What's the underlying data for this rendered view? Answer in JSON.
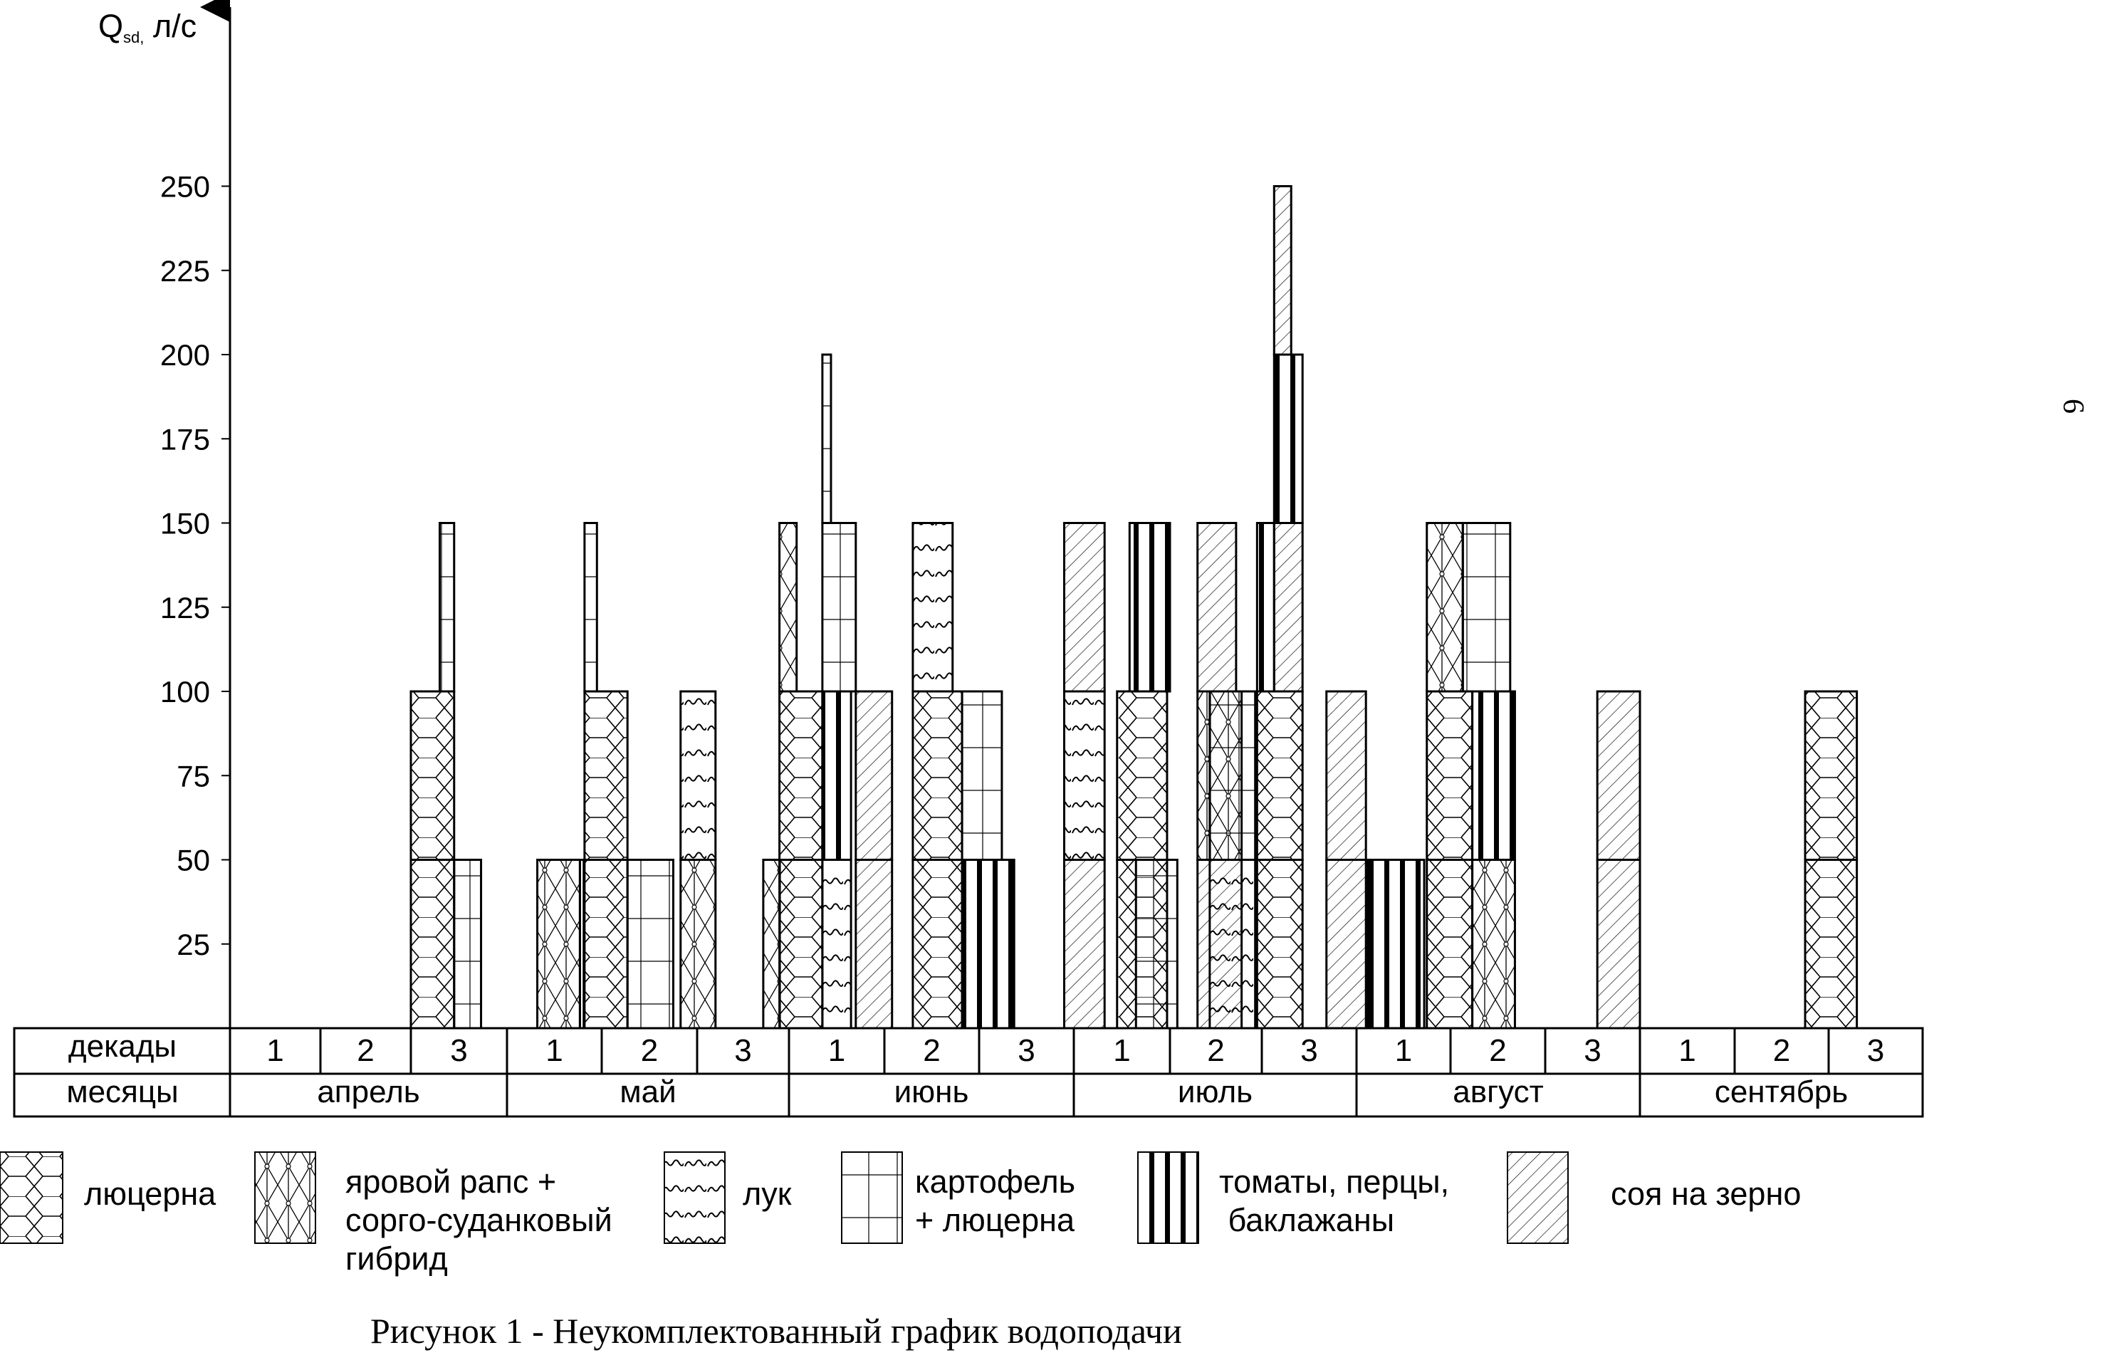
{
  "chart_data": {
    "type": "bar",
    "title": "",
    "ylabel": "Qsd, л/с",
    "ylabel_main": "Q",
    "ylabel_sub": "sd,",
    "ylabel_unit": " л/с",
    "ylim": [
      0,
      300
    ],
    "yticks": [
      25,
      50,
      75,
      100,
      125,
      150,
      175,
      200,
      225,
      250
    ],
    "grid": false,
    "row_labels": {
      "decades": "декады",
      "months": "месяцы"
    },
    "months": [
      {
        "name": "апрель",
        "decades": [
          "1",
          "2",
          "3"
        ]
      },
      {
        "name": "май",
        "decades": [
          "1",
          "2",
          "3"
        ]
      },
      {
        "name": "июнь",
        "decades": [
          "1",
          "2",
          "3"
        ]
      },
      {
        "name": "июль",
        "decades": [
          "1",
          "2",
          "3"
        ]
      },
      {
        "name": "август",
        "decades": [
          "1",
          "2",
          "3"
        ]
      },
      {
        "name": "сентябрь",
        "decades": [
          "1",
          "2",
          "3"
        ]
      }
    ],
    "crops": [
      {
        "key": "alfalfa",
        "name": "люцерна"
      },
      {
        "key": "rape",
        "name": "яровой рапс +\nсорго-суданковый\nгибрид"
      },
      {
        "key": "onion",
        "name": "лук"
      },
      {
        "key": "potato",
        "name": "картофель\n+ люцерна"
      },
      {
        "key": "tomato",
        "name": "томаты, перцы,\n баклажаны"
      },
      {
        "key": "soy",
        "name": "соя на зерно"
      }
    ],
    "bars": [
      {
        "decade": 3,
        "offset": 0.0,
        "width": 0.45,
        "crop": "alfalfa",
        "y0": 0,
        "y1": 50
      },
      {
        "decade": 3,
        "offset": 0.0,
        "width": 0.45,
        "crop": "alfalfa",
        "y0": 50,
        "y1": 100
      },
      {
        "decade": 3,
        "offset": 0.3,
        "width": 0.15,
        "crop": "potato",
        "y0": 100,
        "y1": 150
      },
      {
        "decade": 3,
        "offset": 0.45,
        "width": 0.28,
        "crop": "potato",
        "y0": 0,
        "y1": 50
      },
      {
        "decade": 4,
        "offset": 0.32,
        "width": 0.45,
        "crop": "rape",
        "y0": 0,
        "y1": 50
      },
      {
        "decade": 4,
        "offset": 0.77,
        "width": 0.04,
        "crop": "tomato",
        "y0": 0,
        "y1": 50
      },
      {
        "decade": 5,
        "offset": -0.18,
        "width": 0.45,
        "crop": "alfalfa",
        "y0": 0,
        "y1": 50
      },
      {
        "decade": 5,
        "offset": -0.18,
        "width": 0.45,
        "crop": "alfalfa",
        "y0": 50,
        "y1": 100
      },
      {
        "decade": 5,
        "offset": -0.18,
        "width": 0.13,
        "crop": "potato",
        "y0": 100,
        "y1": 150
      },
      {
        "decade": 5,
        "offset": 0.27,
        "width": 0.48,
        "crop": "potato",
        "y0": 0,
        "y1": 50
      },
      {
        "decade": 6,
        "offset": -0.18,
        "width": 0.38,
        "crop": "rape",
        "y0": 0,
        "y1": 50
      },
      {
        "decade": 6,
        "offset": -0.18,
        "width": 0.38,
        "crop": "onion",
        "y0": 50,
        "y1": 100
      },
      {
        "decade": 6,
        "offset": 0.72,
        "width": 0.18,
        "crop": "rape",
        "y0": 0,
        "y1": 50
      },
      {
        "decade": 7,
        "offset": -0.1,
        "width": 0.45,
        "crop": "alfalfa",
        "y0": 0,
        "y1": 50
      },
      {
        "decade": 7,
        "offset": -0.1,
        "width": 0.45,
        "crop": "alfalfa",
        "y0": 50,
        "y1": 100
      },
      {
        "decade": 7,
        "offset": -0.1,
        "width": 0.18,
        "crop": "rape",
        "y0": 100,
        "y1": 150
      },
      {
        "decade": 7,
        "offset": 0.35,
        "width": 0.3,
        "crop": "onion",
        "y0": 0,
        "y1": 50
      },
      {
        "decade": 7,
        "offset": 0.35,
        "width": 0.3,
        "crop": "tomato",
        "y0": 50,
        "y1": 100
      },
      {
        "decade": 7,
        "offset": 0.35,
        "width": 0.35,
        "crop": "potato",
        "y0": 100,
        "y1": 150
      },
      {
        "decade": 7,
        "offset": 0.7,
        "width": 0.38,
        "crop": "soy",
        "y0": 0,
        "y1": 50
      },
      {
        "decade": 7,
        "offset": 0.7,
        "width": 0.38,
        "crop": "soy",
        "y0": 50,
        "y1": 100
      },
      {
        "decade": 7,
        "offset": 0.35,
        "width": 0.09,
        "crop": "potato",
        "y0": 150,
        "y1": 200
      },
      {
        "decade": 9,
        "offset": -0.7,
        "width": 0.52,
        "crop": "alfalfa",
        "y0": 0,
        "y1": 50
      },
      {
        "decade": 9,
        "offset": -0.7,
        "width": 0.52,
        "crop": "alfalfa",
        "y0": 50,
        "y1": 100
      },
      {
        "decade": 9,
        "offset": -0.7,
        "width": 0.42,
        "crop": "onion",
        "y0": 100,
        "y1": 150
      },
      {
        "decade": 9,
        "offset": -0.18,
        "width": 0.55,
        "crop": "tomato",
        "y0": 0,
        "y1": 50
      },
      {
        "decade": 9,
        "offset": -0.18,
        "width": 0.42,
        "crop": "potato",
        "y0": 50,
        "y1": 100
      },
      {
        "decade": 10,
        "offset": -0.1,
        "width": 0.42,
        "crop": "soy",
        "y0": 0,
        "y1": 50
      },
      {
        "decade": 10,
        "offset": -0.1,
        "width": 0.42,
        "crop": "onion",
        "y0": 50,
        "y1": 100
      },
      {
        "decade": 10,
        "offset": -0.1,
        "width": 0.42,
        "crop": "soy",
        "y0": 100,
        "y1": 150
      },
      {
        "decade": 10,
        "offset": 0.45,
        "width": 0.52,
        "crop": "alfalfa",
        "y0": 0,
        "y1": 50
      },
      {
        "decade": 10,
        "offset": 0.45,
        "width": 0.52,
        "crop": "alfalfa",
        "y0": 50,
        "y1": 100
      },
      {
        "decade": 10,
        "offset": 0.58,
        "width": 0.42,
        "crop": "tomato",
        "y0": 100,
        "y1": 150
      },
      {
        "decade": 11,
        "offset": -0.37,
        "width": 0.45,
        "crop": "potato",
        "y0": 0,
        "y1": 50
      },
      {
        "decade": 11,
        "offset": 0.3,
        "width": 0.48,
        "crop": "soy",
        "y0": 0,
        "y1": 50
      },
      {
        "decade": 11,
        "offset": 0.3,
        "width": 0.48,
        "crop": "rape",
        "y0": 50,
        "y1": 100
      },
      {
        "decade": 11,
        "offset": 0.3,
        "width": 0.42,
        "crop": "soy",
        "y0": 100,
        "y1": 150
      },
      {
        "decade": 12,
        "offset": -0.55,
        "width": 0.48,
        "crop": "onion",
        "y0": 0,
        "y1": 50
      },
      {
        "decade": 12,
        "offset": -0.55,
        "width": 0.48,
        "crop": "potato",
        "y0": 50,
        "y1": 100
      },
      {
        "decade": 12,
        "offset": -0.05,
        "width": 0.48,
        "crop": "alfalfa",
        "y0": 0,
        "y1": 50
      },
      {
        "decade": 12,
        "offset": -0.05,
        "width": 0.48,
        "crop": "alfalfa",
        "y0": 50,
        "y1": 100
      },
      {
        "decade": 12,
        "offset": -0.05,
        "width": 0.18,
        "crop": "tomato",
        "y0": 100,
        "y1": 150
      },
      {
        "decade": 12,
        "offset": 0.13,
        "width": 0.3,
        "crop": "soy",
        "y0": 100,
        "y1": 150
      },
      {
        "decade": 12,
        "offset": 0.13,
        "width": 0.3,
        "crop": "tomato",
        "y0": 150,
        "y1": 200
      },
      {
        "decade": 12,
        "offset": 0.13,
        "width": 0.18,
        "crop": "soy",
        "y0": 200,
        "y1": 250
      },
      {
        "decade": 13,
        "offset": -0.32,
        "width": 0.42,
        "crop": "soy",
        "y0": 0,
        "y1": 50
      },
      {
        "decade": 13,
        "offset": -0.32,
        "width": 0.42,
        "crop": "soy",
        "y0": 50,
        "y1": 100
      },
      {
        "decade": 13,
        "offset": 0.12,
        "width": 0.6,
        "crop": "tomato",
        "y0": 0,
        "y1": 50
      },
      {
        "decade": 14,
        "offset": -0.25,
        "width": 0.48,
        "crop": "alfalfa",
        "y0": 0,
        "y1": 50
      },
      {
        "decade": 14,
        "offset": -0.25,
        "width": 0.48,
        "crop": "alfalfa",
        "y0": 50,
        "y1": 100
      },
      {
        "decade": 14,
        "offset": -0.25,
        "width": 0.38,
        "crop": "rape",
        "y0": 100,
        "y1": 150
      },
      {
        "decade": 14,
        "offset": 0.23,
        "width": 0.45,
        "crop": "rape",
        "y0": 0,
        "y1": 50
      },
      {
        "decade": 14,
        "offset": 0.23,
        "width": 0.45,
        "crop": "tomato",
        "y0": 50,
        "y1": 100
      },
      {
        "decade": 14,
        "offset": 0.13,
        "width": 0.5,
        "crop": "potato",
        "y0": 100,
        "y1": 150
      },
      {
        "decade": 16,
        "offset": -0.45,
        "width": 0.45,
        "crop": "soy",
        "y0": 0,
        "y1": 50
      },
      {
        "decade": 16,
        "offset": -0.45,
        "width": 0.45,
        "crop": "soy",
        "y0": 50,
        "y1": 100
      },
      {
        "decade": 18,
        "offset": -0.25,
        "width": 0.55,
        "crop": "alfalfa",
        "y0": 0,
        "y1": 50
      },
      {
        "decade": 18,
        "offset": -0.25,
        "width": 0.55,
        "crop": "alfalfa",
        "y0": 50,
        "y1": 100
      }
    ]
  },
  "caption": "Рисунок 1 - Неукомплектованный график водоподачи",
  "page_number": "6"
}
